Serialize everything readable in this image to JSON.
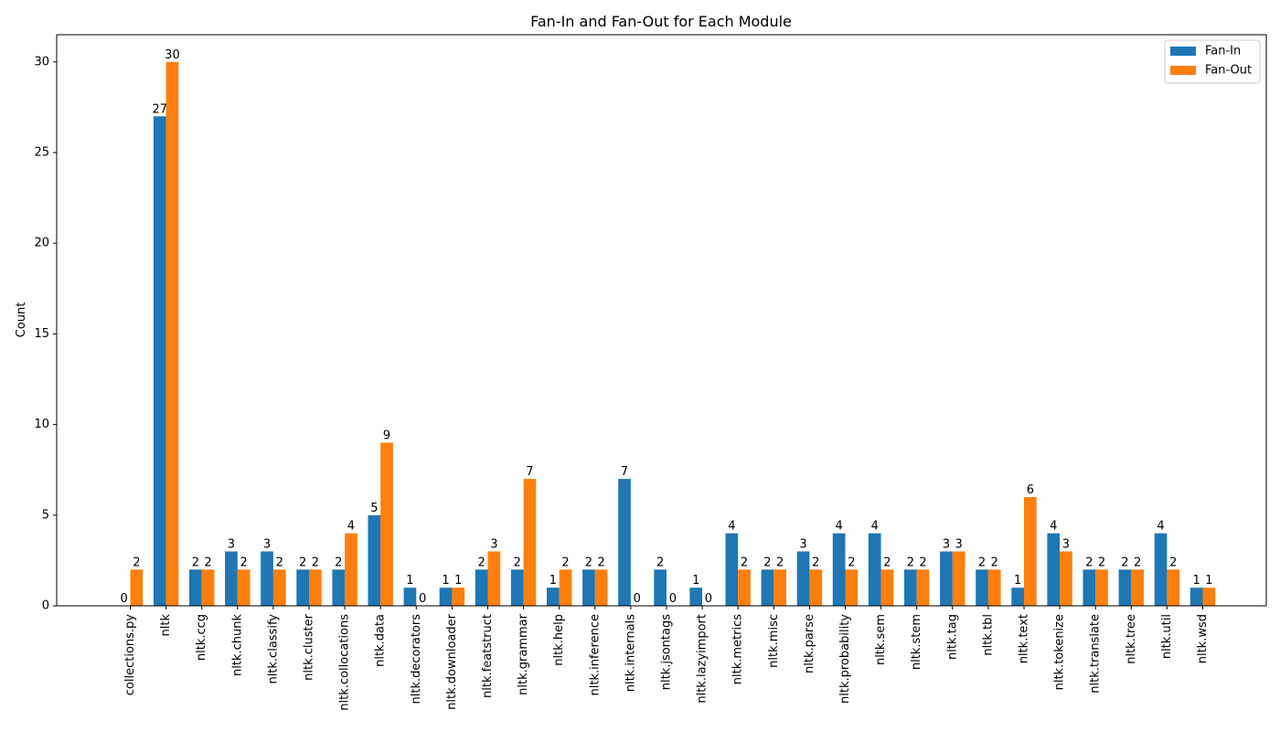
{
  "chart_data": {
    "type": "bar",
    "title": "Fan-In and Fan-Out for Each Module",
    "xlabel": "",
    "ylabel": "Count",
    "ylim": [
      0,
      31.5
    ],
    "yticks": [
      0,
      5,
      10,
      15,
      20,
      25,
      30
    ],
    "grid": false,
    "legend_position": "top-right",
    "categories": [
      "collections.py",
      "nltk",
      "nltk.ccg",
      "nltk.chunk",
      "nltk.classify",
      "nltk.cluster",
      "nltk.collocations",
      "nltk.data",
      "nltk.decorators",
      "nltk.downloader",
      "nltk.featstruct",
      "nltk.grammar",
      "nltk.help",
      "nltk.inference",
      "nltk.internals",
      "nltk.jsontags",
      "nltk.lazyimport",
      "nltk.metrics",
      "nltk.misc",
      "nltk.parse",
      "nltk.probability",
      "nltk.sem",
      "nltk.stem",
      "nltk.tag",
      "nltk.tbl",
      "nltk.text",
      "nltk.tokenize",
      "nltk.translate",
      "nltk.tree",
      "nltk.util",
      "nltk.wsd"
    ],
    "series": [
      {
        "name": "Fan-In",
        "color": "#1f77b4",
        "values": [
          0,
          27,
          2,
          3,
          3,
          2,
          2,
          5,
          1,
          1,
          2,
          2,
          1,
          2,
          7,
          2,
          1,
          4,
          2,
          3,
          4,
          4,
          2,
          3,
          2,
          1,
          4,
          2,
          2,
          4,
          1
        ]
      },
      {
        "name": "Fan-Out",
        "color": "#ff7f0e",
        "values": [
          2,
          30,
          2,
          2,
          2,
          2,
          4,
          9,
          0,
          1,
          3,
          7,
          2,
          2,
          0,
          0,
          0,
          2,
          2,
          2,
          2,
          2,
          2,
          3,
          2,
          6,
          3,
          2,
          2,
          2,
          1
        ]
      }
    ]
  }
}
